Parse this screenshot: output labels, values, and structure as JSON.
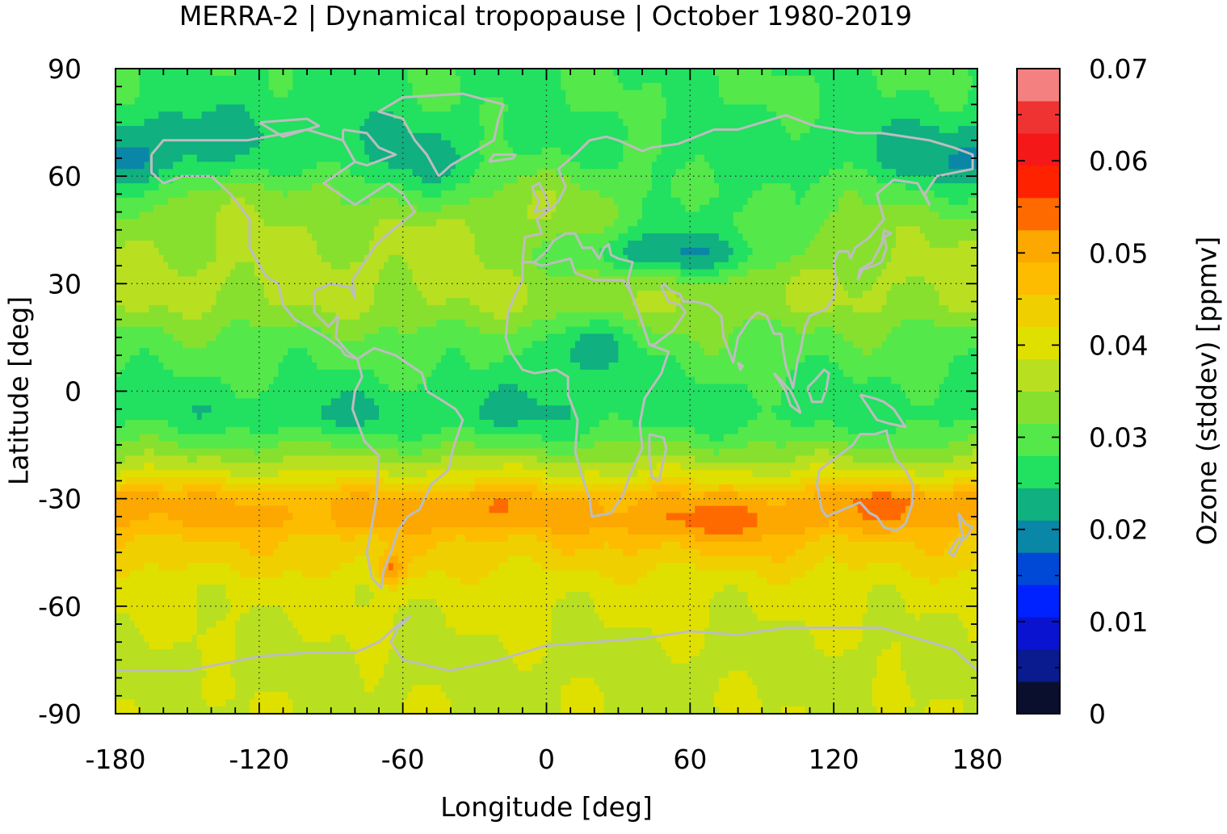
{
  "chart_data": {
    "type": "heatmap",
    "title": "MERRA-2 | Dynamical tropopause | October 1980-2019",
    "xlabel": "Longitude [deg]",
    "ylabel": "Latitude [deg]",
    "colorbar_label": "Ozone (stddev) [ppmv]",
    "xlim": [
      -180,
      180
    ],
    "ylim": [
      -90,
      90
    ],
    "x_ticks": [
      -180,
      -120,
      -60,
      0,
      60,
      120,
      180
    ],
    "x_tick_labels": [
      "-180",
      "-120",
      "-60",
      "0",
      "60",
      "120",
      "180"
    ],
    "y_ticks": [
      90,
      60,
      30,
      0,
      -30,
      -60,
      -90
    ],
    "y_tick_labels": [
      "90",
      "60",
      "30",
      "0",
      "-30",
      "-60",
      "-90"
    ],
    "colorbar_ticks": [
      0.07,
      0.06,
      0.05,
      0.04,
      0.03,
      0.02,
      0.01,
      0
    ],
    "colorbar_tick_labels": [
      "0.07",
      "0.06",
      "0.05",
      "0.04",
      "0.03",
      "0.02",
      "0.01",
      "0"
    ],
    "colorbar_range": [
      0,
      0.07
    ],
    "grid": true,
    "coastlines": true,
    "levels": [
      0,
      0.0035,
      0.007,
      0.0105,
      0.014,
      0.0175,
      0.021,
      0.0245,
      0.028,
      0.0315,
      0.035,
      0.0385,
      0.042,
      0.0455,
      0.049,
      0.0525,
      0.056,
      0.0595,
      0.063,
      0.0665,
      0.07
    ],
    "colors": [
      "#0b0f2e",
      "#0a1a8f",
      "#0a14d0",
      "#0022ff",
      "#0048d6",
      "#0a86a6",
      "#10b080",
      "#22e060",
      "#55e84a",
      "#88e02e",
      "#b8e020",
      "#e0e000",
      "#f0cf00",
      "#fdbc00",
      "#fca800",
      "#ff6a00",
      "#ff2200",
      "#f51818",
      "#ef3333",
      "#f58080",
      "#ffcccc"
    ],
    "latitude_profile": [
      {
        "lat": 88,
        "value": 0.028
      },
      {
        "lat": 80,
        "value": 0.028
      },
      {
        "lat": 72,
        "value": 0.027
      },
      {
        "lat": 64,
        "value": 0.029
      },
      {
        "lat": 56,
        "value": 0.034
      },
      {
        "lat": 48,
        "value": 0.035
      },
      {
        "lat": 40,
        "value": 0.035
      },
      {
        "lat": 32,
        "value": 0.036
      },
      {
        "lat": 24,
        "value": 0.035
      },
      {
        "lat": 16,
        "value": 0.031
      },
      {
        "lat": 8,
        "value": 0.029
      },
      {
        "lat": 0,
        "value": 0.027
      },
      {
        "lat": -6,
        "value": 0.026
      },
      {
        "lat": -12,
        "value": 0.029
      },
      {
        "lat": -18,
        "value": 0.034
      },
      {
        "lat": -24,
        "value": 0.04
      },
      {
        "lat": -30,
        "value": 0.049
      },
      {
        "lat": -36,
        "value": 0.05
      },
      {
        "lat": -42,
        "value": 0.045
      },
      {
        "lat": -48,
        "value": 0.043
      },
      {
        "lat": -54,
        "value": 0.04
      },
      {
        "lat": -62,
        "value": 0.039
      },
      {
        "lat": -70,
        "value": 0.038
      },
      {
        "lat": -78,
        "value": 0.037
      },
      {
        "lat": -86,
        "value": 0.038
      },
      {
        "lat": -90,
        "value": 0.038
      }
    ],
    "features": [
      {
        "lon": 50,
        "lat": 38,
        "dlon": 34,
        "dlat": 5,
        "value": 0.023
      },
      {
        "lon": 15,
        "lat": 12,
        "dlon": 15,
        "dlat": 6,
        "value": 0.023
      },
      {
        "lon": -20,
        "lat": -7,
        "dlon": 25,
        "dlat": 6,
        "value": 0.024
      },
      {
        "lon": -90,
        "lat": -7,
        "dlon": 18,
        "dlat": 4,
        "value": 0.024
      },
      {
        "lon": -165,
        "lat": 65,
        "dlon": 25,
        "dlat": 8,
        "value": 0.024
      },
      {
        "lon": -110,
        "lat": 75,
        "dlon": 40,
        "dlat": 10,
        "value": 0.025
      },
      {
        "lon": 70,
        "lat": 52,
        "dlon": 30,
        "dlat": 8,
        "value": 0.027
      },
      {
        "lon": 160,
        "lat": 60,
        "dlon": 30,
        "dlat": 9,
        "value": 0.026
      },
      {
        "lon": -55,
        "lat": 58,
        "dlon": 22,
        "dlat": 8,
        "value": 0.026
      },
      {
        "lon": -45,
        "lat": 45,
        "dlon": 20,
        "dlat": 7,
        "value": 0.037
      },
      {
        "lon": -30,
        "lat": -32,
        "dlon": 14,
        "dlat": 5,
        "value": 0.053
      },
      {
        "lon": 70,
        "lat": -38,
        "dlon": 28,
        "dlat": 5,
        "value": 0.053
      },
      {
        "lon": 145,
        "lat": -30,
        "dlon": 18,
        "dlat": 4,
        "value": 0.053
      },
      {
        "lon": -170,
        "lat": -30,
        "dlon": 10,
        "dlat": 3,
        "value": 0.052
      },
      {
        "lon": -65,
        "lat": -50,
        "dlon": 4,
        "dlat": 3,
        "value": 0.053
      }
    ]
  }
}
